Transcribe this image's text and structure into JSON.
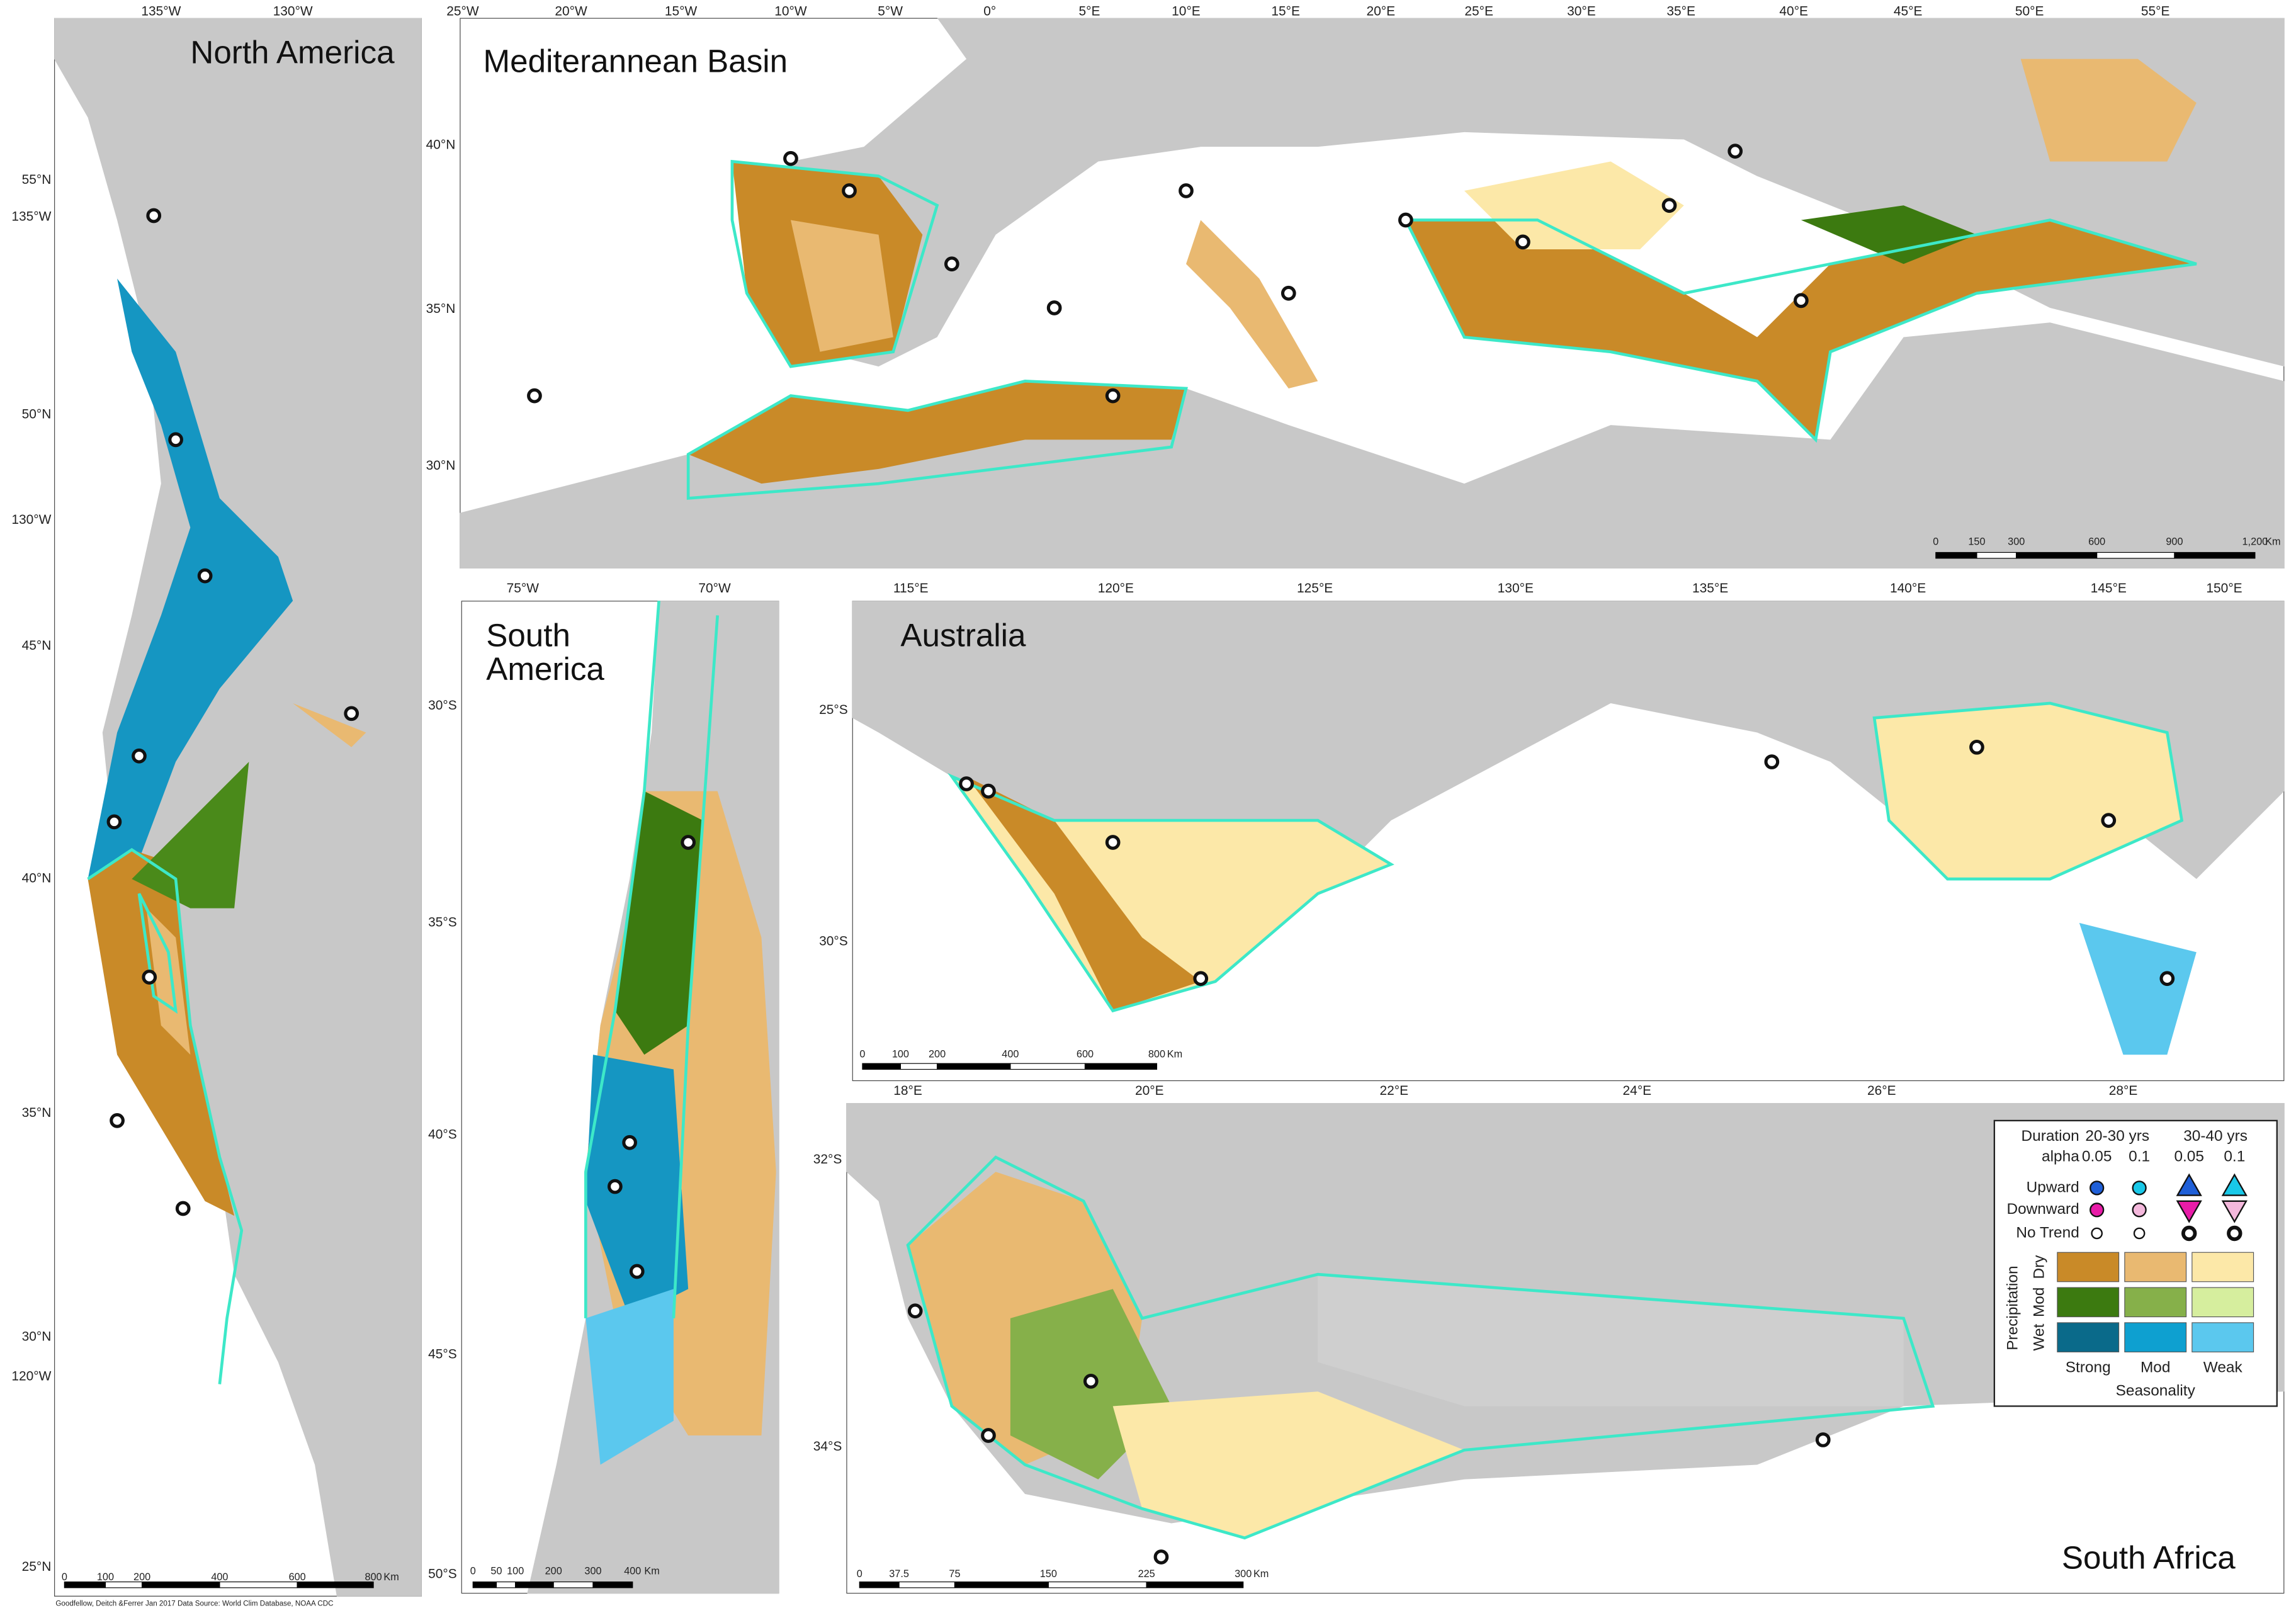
{
  "panels": [
    {
      "title": "North America",
      "top_labels": [
        "135°W",
        "130°W"
      ],
      "left_labels": [
        "55°N",
        "135°W",
        "50°N",
        "130°W",
        "45°N",
        "40°N",
        "35°N",
        "30°N",
        "120°W",
        "25°N"
      ],
      "scale_labels": [
        "0",
        "100",
        "200",
        "400",
        "600",
        "800",
        "Km"
      ]
    },
    {
      "title": "Mediterannean Basin",
      "top_labels": [
        "25°W",
        "20°W",
        "15°W",
        "10°W",
        "5°W",
        "0°",
        "5°E",
        "10°E",
        "15°E",
        "20°E",
        "25°E",
        "30°E",
        "35°E",
        "40°E",
        "45°E",
        "50°E",
        "55°E"
      ],
      "left_labels": [
        "40°N",
        "35°N",
        "30°N"
      ],
      "scale_labels": [
        "0",
        "150",
        "300",
        "600",
        "900",
        "1,200",
        "Km"
      ]
    },
    {
      "title": "South America",
      "top_labels": [
        "75°W",
        "70°W"
      ],
      "left_labels": [
        "30°S",
        "35°S",
        "40°S",
        "45°S",
        "50°S"
      ],
      "scale_labels": [
        "0",
        "50",
        "100",
        "200",
        "300",
        "400",
        "Km"
      ]
    },
    {
      "title": "Australia",
      "top_labels": [
        "115°E",
        "120°E",
        "125°E",
        "130°E",
        "135°E",
        "140°E",
        "145°E",
        "150°E"
      ],
      "left_labels": [
        "25°S",
        "30°S"
      ],
      "scale_labels": [
        "0",
        "100",
        "200",
        "400",
        "600",
        "800",
        "Km"
      ]
    },
    {
      "title": "South Africa",
      "top_labels": [
        "18°E",
        "20°E",
        "22°E",
        "24°E",
        "26°E",
        "28°E"
      ],
      "left_labels": [
        "32°S",
        "34°S"
      ],
      "scale_labels": [
        "0",
        "37.5",
        "75",
        "150",
        "225",
        "300",
        "Km"
      ]
    }
  ],
  "legend": {
    "duration": "Duration",
    "duration_short": "20-30 yrs",
    "duration_long": "30-40 yrs",
    "alpha": "alpha",
    "alphas": [
      "0.05",
      "0.1",
      "0.05",
      "0.1"
    ],
    "trends": [
      "Upward",
      "Downward",
      "No Trend"
    ],
    "precipitation": "Precipitation",
    "precip_levels": [
      "Dry",
      "Mod",
      "Wet"
    ],
    "seasonality_levels": [
      "Strong",
      "Mod",
      "Weak"
    ],
    "seasonality": "Seasonality"
  },
  "credit": "Goodfellow, Deitch &Ferrer  Jan 2017  Data Source: World Clim Database, NOAA CDC"
}
